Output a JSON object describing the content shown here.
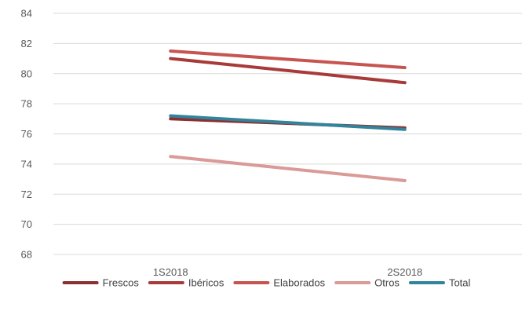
{
  "chart_data": {
    "type": "line",
    "categories": [
      "1S2018",
      "2S2018"
    ],
    "series": [
      {
        "name": "Frescos",
        "values": [
          77.0,
          76.4
        ],
        "color": "#8b2f2f"
      },
      {
        "name": "Ibéricos",
        "values": [
          81.0,
          79.4
        ],
        "color": "#a83a3a"
      },
      {
        "name": "Elaborados",
        "values": [
          81.5,
          80.4
        ],
        "color": "#c65450"
      },
      {
        "name": "Otros",
        "values": [
          74.5,
          72.9
        ],
        "color": "#d99a98"
      },
      {
        "name": "Total",
        "values": [
          77.2,
          76.3
        ],
        "color": "#31849b"
      }
    ],
    "ylim": [
      68,
      84
    ],
    "yticks": [
      68,
      70,
      72,
      74,
      76,
      78,
      80,
      82,
      84
    ],
    "grid": true,
    "legend_position": "bottom"
  }
}
